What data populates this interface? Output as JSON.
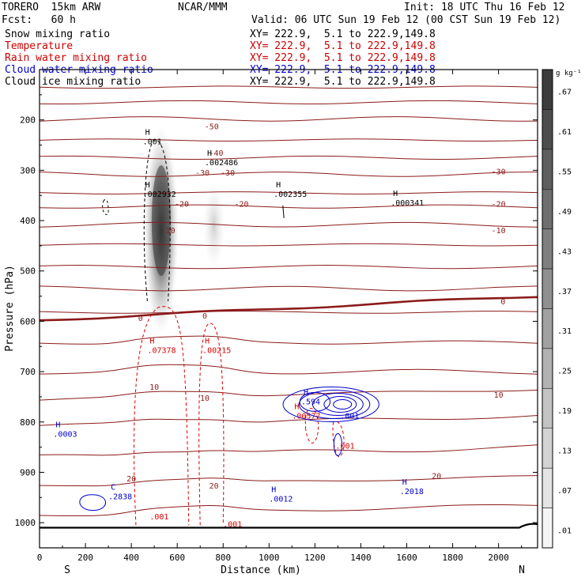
{
  "header": {
    "model": "TORERO  15km ARW",
    "org": "NCAR/MMM",
    "init": "Init: 18 UTC Thu 16 Feb 12",
    "fcst": "Fcst:   60 h",
    "valid": "Valid: 06 UTC Sun 19 Feb 12 (00 CST Sun 19 Feb 12)"
  },
  "fields": [
    {
      "name": "Snow mixing ratio",
      "xy": "",
      "color": "#000000"
    },
    {
      "name": "Temperature",
      "xy": "XY= 222.9,  5.1 to 222.9,149.8",
      "color": "#cc0000"
    },
    {
      "name": "Rain water mixing ratio",
      "xy": "XY= 222.9,  5.1 to 222.9,149.8",
      "color": "#cc0000"
    },
    {
      "name": "Cloud water mixing ratio",
      "xy": "XY= 222.9,  5.1 to 222.9,149.8",
      "color": "#0000cc"
    },
    {
      "name": "Cloud ice mixing ratio",
      "xy": "XY= 222.9,  5.1 to 222.9,149.8",
      "color": "#000000"
    }
  ],
  "snow_xy": "XY= 222.9,  5.1 to 222.9,149.8",
  "colors": {
    "temp": "#8b1a1a",
    "rain": "#dd0000",
    "cloudwater": "#0000cc",
    "ice": "#000000",
    "ground": "#000000"
  },
  "chart_data": {
    "type": "cross-section",
    "xlabel": "Distance (km)",
    "ylabel": "Pressure (hPa)",
    "xlim": [
      0,
      2170
    ],
    "ylim": [
      1050,
      100
    ],
    "xticks": [
      "0",
      "200",
      "400",
      "600",
      "800",
      "1000",
      "1200",
      "1400",
      "1600",
      "1800",
      "2000"
    ],
    "yticks": [
      "200",
      "300",
      "400",
      "500",
      "600",
      "700",
      "800",
      "900",
      "1000"
    ],
    "left_end": "S",
    "right_end": "N",
    "colorbar": {
      "unit": "g kg⁻¹",
      "labels": [
        ".67",
        ".61",
        ".55",
        ".49",
        ".43",
        ".37",
        ".31",
        ".25",
        ".19",
        ".13",
        ".07",
        ".01"
      ]
    },
    "temperature_labels": [
      "-50",
      "-40",
      "-30",
      "-30",
      "-30",
      "-20",
      "-20",
      "-20",
      "-10",
      "-10",
      "0",
      "0",
      "0",
      "10",
      "10",
      "10",
      "20",
      "20",
      "20"
    ],
    "maxima": [
      {
        "field": "snow",
        "marker": "H",
        "value": ".001"
      },
      {
        "field": "snow",
        "marker": "H",
        "value": ".002486"
      },
      {
        "field": "snow",
        "marker": "H",
        "value": ".002932"
      },
      {
        "field": "snow",
        "marker": "H",
        "value": ".002355"
      },
      {
        "field": "snow",
        "marker": "H",
        "value": ".000341"
      },
      {
        "field": "rain",
        "marker": "H",
        "value": ".07378"
      },
      {
        "field": "rain",
        "marker": "H",
        "value": ".00215"
      },
      {
        "field": "rain",
        "marker": "H",
        "value": ".00577"
      },
      {
        "field": "rain",
        "marker": "",
        "value": ".001"
      },
      {
        "field": "rain",
        "marker": "",
        "value": ".001"
      },
      {
        "field": "rain",
        "marker": "",
        "value": ".001"
      },
      {
        "field": "cloudwater",
        "marker": "H",
        "value": ".594"
      },
      {
        "field": "cloudwater",
        "marker": "",
        "value": ".001"
      },
      {
        "field": "cloudwater",
        "marker": "H",
        "value": ".0003"
      },
      {
        "field": "cloudwater",
        "marker": "C",
        "value": ".2838"
      },
      {
        "field": "cloudwater",
        "marker": "H",
        "value": ".0012"
      },
      {
        "field": "cloudwater",
        "marker": "H",
        "value": ".2018"
      }
    ]
  }
}
